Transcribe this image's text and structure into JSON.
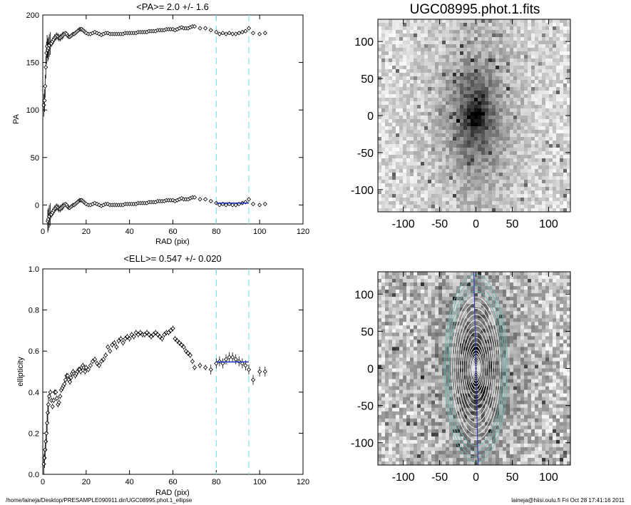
{
  "footer": {
    "path": "/home/laineja/Desktop/PRESAMPLE090911.dir/UGC08995.phot.1_ellipse",
    "stamp": "laineja@hiisi.oulu.fi  Fri Oct 28 17:41:16 2011"
  },
  "chart_data": [
    {
      "type": "scatter",
      "title": "<PA>=   2.0 +/-   1.6",
      "xlabel": "RAD (pix)",
      "ylabel": "PA",
      "xlim": [
        0,
        120
      ],
      "ylim": [
        -20,
        200
      ],
      "xticks": [
        0,
        20,
        40,
        60,
        80,
        100,
        120
      ],
      "yticks": [
        0,
        50,
        100,
        150,
        200
      ],
      "vlines": [
        80,
        95
      ],
      "fit": {
        "x": [
          80,
          95
        ],
        "y": [
          2,
          2
        ]
      },
      "mean_value": 2.0,
      "mean_error": 1.6,
      "series": [
        {
          "x": [
            0.5,
            0.8,
            1.1,
            1.4,
            1.7,
            2.0,
            2.3,
            2.6,
            3.0,
            3.5,
            4.0,
            4.5,
            5.0,
            5.5,
            6.0,
            6.5,
            7.0,
            7.5,
            8.0,
            8.5,
            9.0,
            9.5,
            10.0,
            10.5,
            11.0,
            11.5,
            12.0,
            12.5,
            13.0,
            13.5,
            14.0,
            14.5,
            15.0,
            15.5,
            16.0,
            16.5,
            17.0,
            17.5,
            18.0,
            18.5,
            19.0,
            19.5,
            20.0,
            21,
            22,
            23,
            24,
            25,
            26,
            27,
            28,
            29,
            30,
            31,
            32,
            33,
            34,
            35,
            36,
            37,
            38,
            39,
            40,
            41,
            42,
            43,
            44,
            45,
            46,
            47,
            48,
            49,
            50,
            51,
            52,
            53,
            54,
            55,
            56,
            57,
            58,
            59,
            60,
            61,
            62,
            63,
            64,
            65,
            66,
            67,
            68,
            69,
            70,
            72.5,
            75,
            77.5,
            80,
            81.5,
            83,
            84.5,
            86,
            87.5,
            89,
            90.5,
            92,
            93.5,
            95,
            97,
            100,
            102.5
          ],
          "y": [
            105,
            110,
            125,
            145,
            160,
            167,
            -17,
            -15,
            -12,
            -10,
            -10,
            -8,
            -6,
            -4,
            -3,
            -2,
            -3,
            -4,
            -4,
            -3,
            -2,
            -1,
            0,
            1,
            0,
            -2,
            -3,
            -3,
            -2,
            -1,
            0,
            0,
            1,
            2,
            3,
            4,
            5,
            5,
            5,
            4,
            3,
            2,
            1,
            0,
            0,
            1,
            2,
            1,
            0,
            -1,
            0,
            1,
            1,
            0,
            0,
            0,
            0,
            0,
            0,
            0,
            1,
            1,
            1,
            1,
            1,
            1,
            2,
            2,
            2,
            2,
            2,
            3,
            3,
            3,
            3,
            4,
            4,
            4,
            4,
            5,
            5,
            5,
            5,
            4,
            5,
            6,
            7,
            6,
            6,
            6,
            7,
            8,
            8,
            6,
            6,
            4,
            2,
            0,
            1,
            0,
            1,
            0,
            0,
            1,
            2,
            3,
            6,
            1,
            0,
            1
          ],
          "y_display_branch_note": ""
        }
      ]
    },
    {
      "type": "scatter",
      "title": "<ELL>= 0.547 +/-  0.020",
      "xlabel": "RAD (pix)",
      "ylabel": "ellipticity",
      "xlim": [
        0,
        120
      ],
      "ylim": [
        0.0,
        1.0
      ],
      "xticks": [
        0,
        20,
        40,
        60,
        80,
        100,
        120
      ],
      "yticks": [
        0.0,
        0.2,
        0.4,
        0.6,
        0.8,
        1.0
      ],
      "vlines": [
        80,
        95
      ],
      "fit": {
        "x": [
          80,
          95
        ],
        "y": [
          0.547,
          0.547
        ]
      },
      "mean_value": 0.547,
      "mean_error": 0.02,
      "series": [
        {
          "x": [
            0.5,
            0.8,
            1.1,
            1.4,
            1.7,
            2.0,
            2.3,
            2.6,
            3.0,
            3.5,
            4.0,
            4.5,
            5.0,
            5.5,
            6.0,
            6.5,
            7.0,
            7.5,
            8.0,
            8.5,
            9.0,
            9.5,
            10.0,
            10.5,
            11.0,
            11.5,
            12.0,
            12.5,
            13.0,
            13.5,
            14.0,
            14.5,
            15.0,
            15.5,
            16.0,
            16.5,
            17.0,
            17.5,
            18.0,
            18.5,
            19.0,
            19.5,
            20.0,
            21,
            22,
            23,
            24,
            25,
            26,
            27,
            28,
            29,
            30,
            31,
            32,
            33,
            34,
            35,
            36,
            37,
            38,
            39,
            40,
            41,
            42,
            43,
            44,
            45,
            46,
            47,
            48,
            49,
            50,
            51,
            52,
            53,
            54,
            55,
            56,
            57,
            58,
            59,
            60,
            61,
            62,
            63,
            64,
            65,
            66,
            67,
            68,
            69,
            70,
            72.5,
            75,
            77.5,
            80,
            81.5,
            83,
            84.5,
            86,
            87.5,
            89,
            90.5,
            92,
            93.5,
            95,
            97,
            100,
            102.5
          ],
          "y": [
            0.05,
            0.08,
            0.12,
            0.16,
            0.2,
            0.25,
            0.3,
            0.34,
            0.38,
            0.4,
            0.36,
            0.33,
            0.36,
            0.4,
            0.4,
            0.37,
            0.34,
            0.35,
            0.38,
            0.41,
            0.42,
            0.43,
            0.44,
            0.46,
            0.48,
            0.48,
            0.46,
            0.45,
            0.47,
            0.49,
            0.5,
            0.49,
            0.48,
            0.49,
            0.5,
            0.51,
            0.51,
            0.5,
            0.52,
            0.53,
            0.52,
            0.5,
            0.52,
            0.51,
            0.53,
            0.55,
            0.56,
            0.54,
            0.53,
            0.55,
            0.56,
            0.58,
            0.62,
            0.6,
            0.63,
            0.64,
            0.62,
            0.65,
            0.66,
            0.64,
            0.66,
            0.67,
            0.66,
            0.68,
            0.67,
            0.69,
            0.68,
            0.69,
            0.68,
            0.68,
            0.69,
            0.68,
            0.67,
            0.68,
            0.69,
            0.68,
            0.67,
            0.66,
            0.68,
            0.69,
            0.69,
            0.7,
            0.71,
            0.66,
            0.65,
            0.64,
            0.63,
            0.62,
            0.6,
            0.59,
            0.58,
            0.55,
            0.52,
            0.53,
            0.52,
            0.51,
            0.54,
            0.55,
            0.54,
            0.56,
            0.57,
            0.57,
            0.56,
            0.55,
            0.54,
            0.53,
            0.51,
            0.46,
            0.5,
            0.5
          ]
        }
      ]
    },
    {
      "type": "heatmap",
      "title": "UGC08995.phot.1.fits",
      "xlim": [
        -135,
        130
      ],
      "ylim": [
        -130,
        130
      ],
      "xticks": [
        -100,
        -50,
        0,
        50,
        100
      ],
      "yticks": [
        -100,
        -50,
        0,
        50,
        100
      ],
      "source_center": [
        0,
        0
      ],
      "source_axis_ratio": 0.45,
      "source_position_angle": 2.0
    },
    {
      "type": "heatmap",
      "xlim": [
        -135,
        130
      ],
      "ylim": [
        -130,
        130
      ],
      "xticks": [
        -100,
        -50,
        0,
        50,
        100
      ],
      "yticks": [
        -100,
        -50,
        0,
        50,
        100
      ],
      "contours": "isophote ellipses",
      "major_axis_line": true
    }
  ]
}
